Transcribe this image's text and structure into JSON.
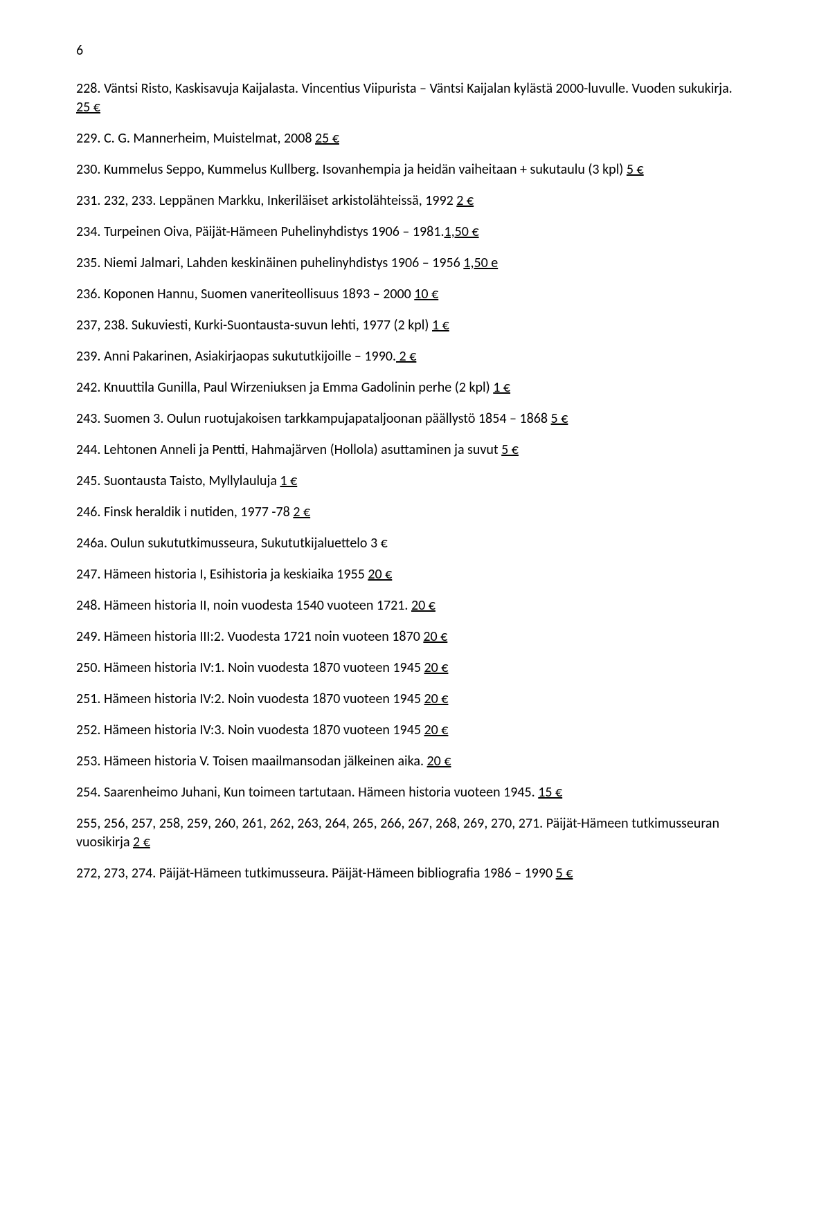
{
  "pageNumber": "6",
  "entries": [
    {
      "pre": "228. Väntsi Risto, Kaskisavuja Kaijalasta. Vincentius Viipurista – Väntsi Kaijalan kylästä 2000-luvulle. Vuoden sukukirja.  ",
      "price": "25 €"
    },
    {
      "pre": "229. C. G. Mannerheim, Muistelmat, 2008 ",
      "price": "25 €"
    },
    {
      "pre": "230. Kummelus Seppo, Kummelus Kullberg. Isovanhempia ja heidän vaiheitaan + sukutaulu (3 kpl) ",
      "price": "5 €"
    },
    {
      "pre": "231. 232, 233. Leppänen Markku, Inkeriläiset arkistolähteissä, 1992 ",
      "price": "2 €"
    },
    {
      "pre": "234. Turpeinen Oiva, Päijät-Hämeen Puhelinyhdistys 1906 – 1981.",
      "price": "1,50 €"
    },
    {
      "pre": "235. Niemi Jalmari, Lahden keskinäinen puhelinyhdistys 1906 – 1956 ",
      "price": "1,50 e"
    },
    {
      "pre": "236. Koponen Hannu, Suomen vaneriteollisuus 1893 – 2000 ",
      "price": "10 €"
    },
    {
      "pre": "237, 238. Sukuviesti, Kurki-Suontausta-suvun lehti, 1977 (2 kpl) ",
      "price": "1 €"
    },
    {
      "pre": "239. Anni Pakarinen, Asiakirjaopas sukututkijoille – 1990.",
      "price": " 2 €"
    },
    {
      "pre": "242. Knuuttila Gunilla, Paul Wirzeniuksen ja Emma Gadolinin perhe (2 kpl) ",
      "price": "1 €"
    },
    {
      "pre": "243. Suomen 3. Oulun ruotujakoisen tarkkampujapataljoonan päällystö 1854 – 1868 ",
      "price": "5 €"
    },
    {
      "pre": "244. Lehtonen Anneli ja Pentti, Hahmajärven (Hollola) asuttaminen ja suvut ",
      "price": "5 €"
    },
    {
      "pre": "245. Suontausta Taisto, Myllylauluja ",
      "price": "1 €"
    },
    {
      "pre": "246. Finsk heraldik i nutiden, 1977 -78 ",
      "price": "2 €"
    },
    {
      "pre": "246a. Oulun sukututkimusseura, Sukututkijaluettelo 3 €",
      "price": ""
    },
    {
      "pre": "247. Hämeen historia I, Esihistoria ja keskiaika 1955 ",
      "price": "20 €"
    },
    {
      "pre": "248. Hämeen historia II, noin vuodesta 1540 vuoteen 1721. ",
      "price": "20 €"
    },
    {
      "pre": "249. Hämeen historia III:2. Vuodesta 1721 noin vuoteen 1870 ",
      "price": "20 €"
    },
    {
      "pre": "250. Hämeen historia IV:1. Noin vuodesta 1870 vuoteen 1945 ",
      "price": "20 €"
    },
    {
      "pre": "251. Hämeen historia IV:2. Noin vuodesta 1870 vuoteen 1945 ",
      "price": "20 €"
    },
    {
      "pre": "252. Hämeen historia IV:3. Noin vuodesta 1870 vuoteen 1945 ",
      "price": "20 €"
    },
    {
      "pre": "253. Hämeen historia V. Toisen maailmansodan jälkeinen aika. ",
      "price": "20 €"
    },
    {
      "pre": "254. Saarenheimo Juhani, Kun toimeen tartutaan. Hämeen historia vuoteen 1945. ",
      "price": "15 €"
    },
    {
      "pre": "255, 256, 257, 258, 259, 260, 261, 262, 263, 264, 265, 266, 267, 268, 269, 270, 271. Päijät-Hämeen tutkimusseuran vuosikirja ",
      "price": "2 €"
    },
    {
      "pre": "272, 273, 274. Päijät-Hämeen tutkimusseura. Päijät-Hämeen bibliografia 1986 – 1990 ",
      "price": "5 €"
    }
  ]
}
